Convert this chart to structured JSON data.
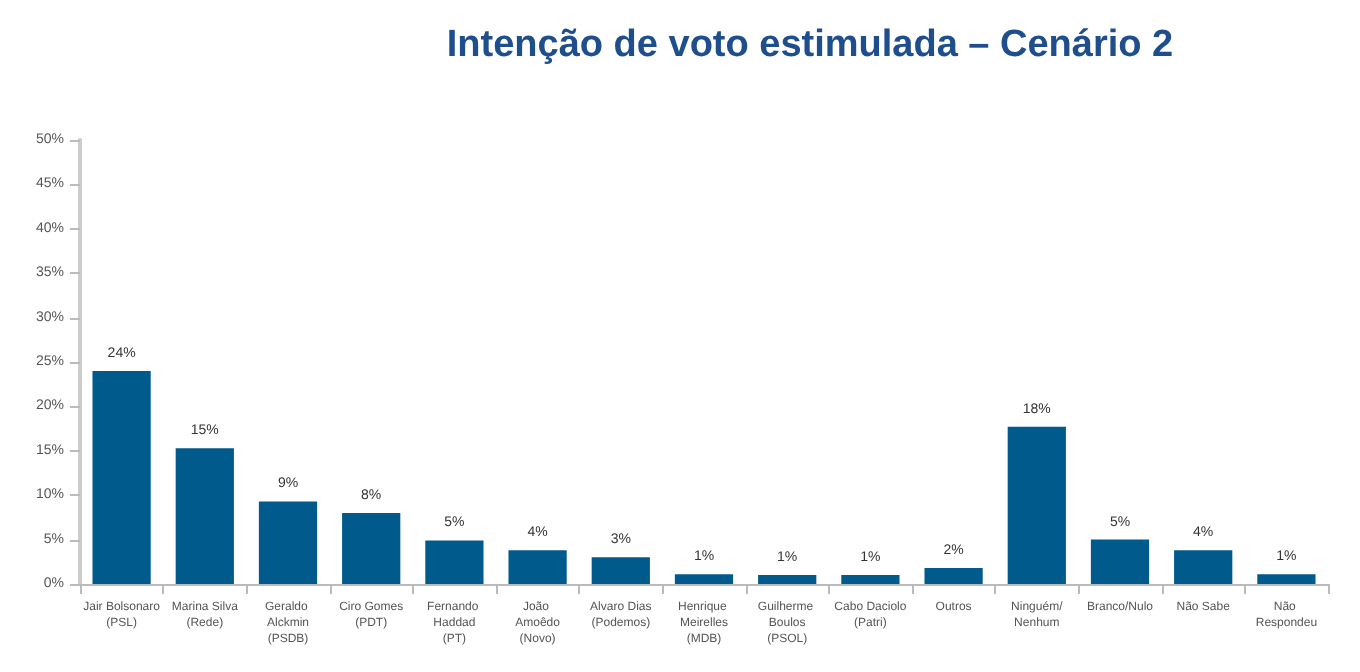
{
  "chart_data": {
    "type": "bar",
    "title": "Intenção de voto estimulada – Cenário 2",
    "categories": [
      "Jair Bolsonaro\n(PSL)",
      "Marina Silva\n(Rede)",
      "Geraldo Alckmin\n(PSDB)",
      "Ciro Gomes\n(PDT)",
      "Fernando Haddad\n(PT)",
      "João Amoêdo\n(Novo)",
      "Alvaro Dias\n(Podemos)",
      "Henrique Meirelles\n(MDB)",
      "Guilherme Boulos\n(PSOL)",
      "Cabo Daciolo\n(Patri)",
      "Outros",
      "Ninguém/Nenhum",
      "Branco/Nulo",
      "Não Sabe",
      "Não Respondeu"
    ],
    "values": [
      24,
      15.3,
      9.3,
      8,
      4.9,
      3.8,
      3,
      1.1,
      1,
      1,
      1.8,
      17.7,
      5,
      3.8,
      1.1
    ],
    "value_labels": [
      "24%",
      "15%",
      "9%",
      "8%",
      "5%",
      "4%",
      "3%",
      "1%",
      "1%",
      "1%",
      "2%",
      "18%",
      "5%",
      "4%",
      "1%"
    ],
    "color": "#005a8c",
    "ylim": [
      0,
      50
    ],
    "yticks": [
      {
        "value": 0,
        "label": "0%"
      },
      {
        "value": 5,
        "label": "5%"
      },
      {
        "value": 10,
        "label": "10%"
      },
      {
        "value": 15,
        "label": "15%"
      },
      {
        "value": 20,
        "label": "20%"
      },
      {
        "value": 25,
        "label": "25%"
      },
      {
        "value": 30,
        "label": "30%"
      },
      {
        "value": 35,
        "label": "35%"
      },
      {
        "value": 40,
        "label": "40%"
      },
      {
        "value": 45,
        "label": "45%"
      },
      {
        "value": 50,
        "label": "50%"
      }
    ],
    "grid": false
  }
}
